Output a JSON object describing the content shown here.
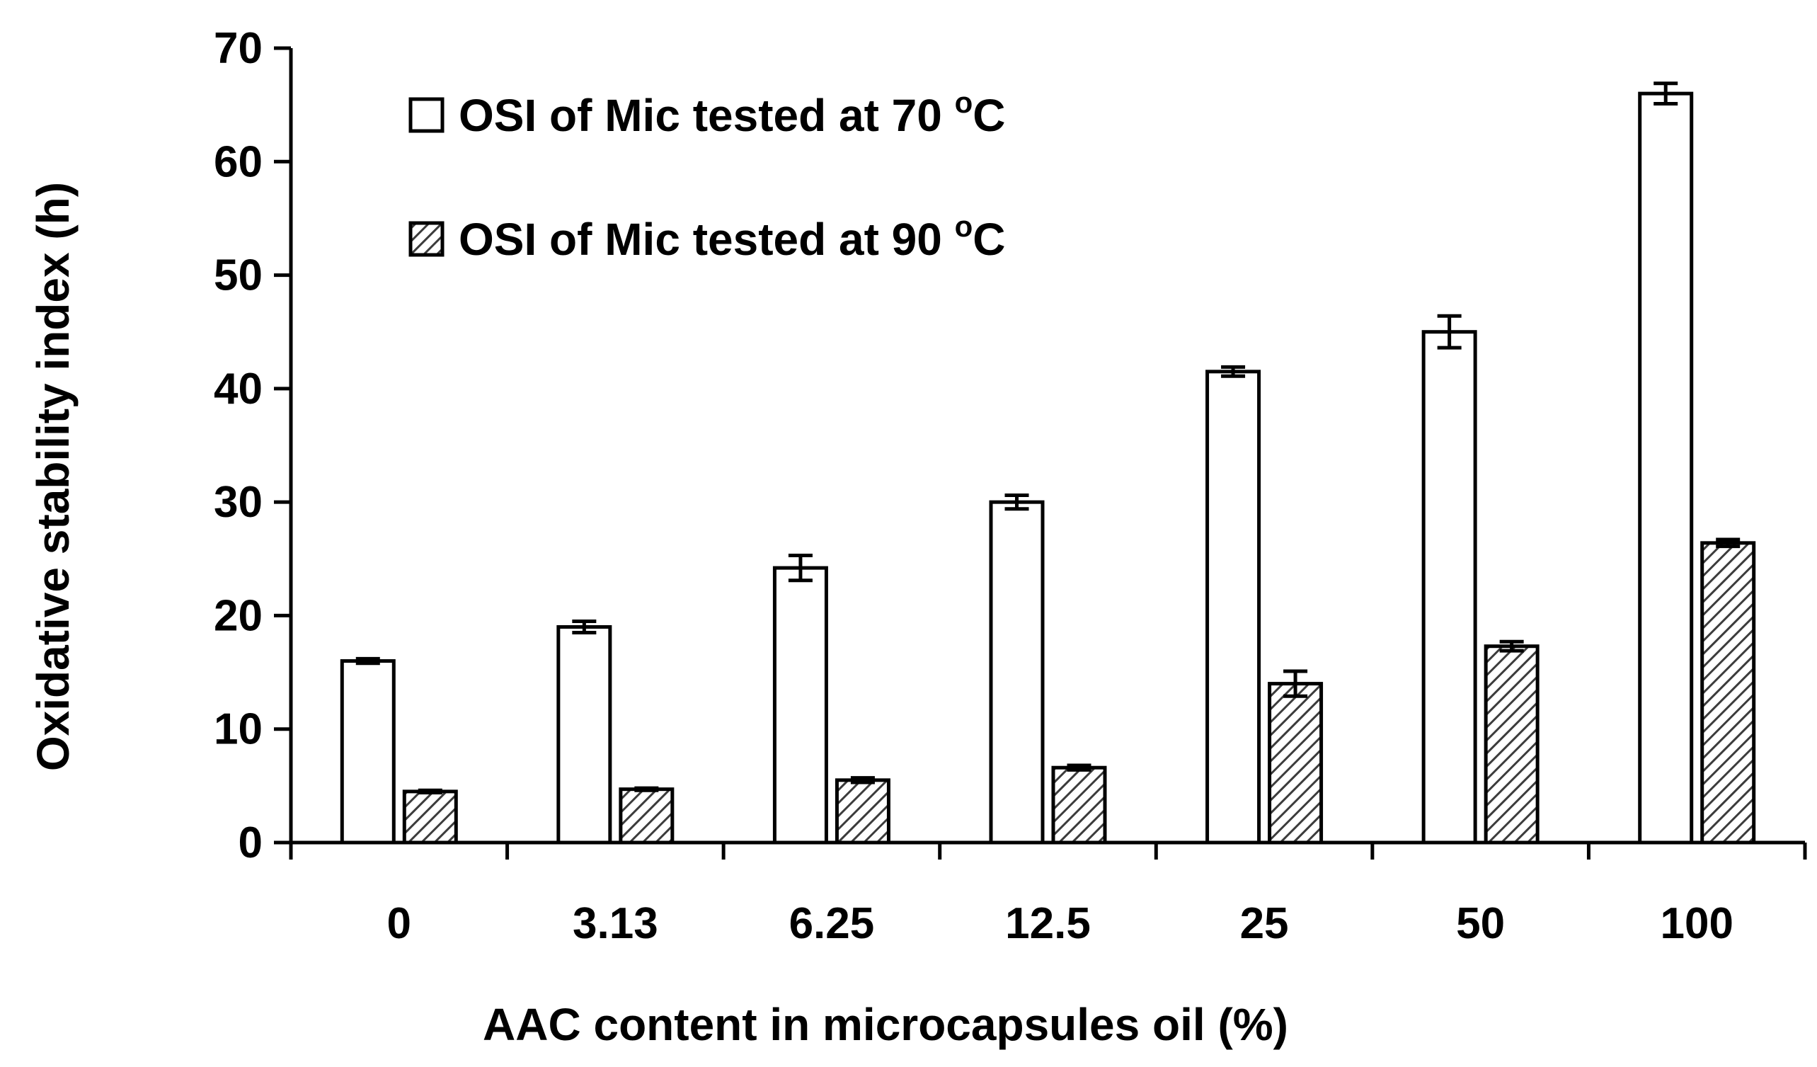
{
  "chart_data": {
    "type": "bar",
    "categories": [
      "0",
      "3.13",
      "6.25",
      "12.5",
      "25",
      "50",
      "100"
    ],
    "xlabel": "AAC content in microcapsules oil (%)",
    "ylabel": "Oxidative stability index (h)",
    "ylim": [
      0,
      70
    ],
    "yticks": [
      0,
      10,
      20,
      30,
      40,
      50,
      60,
      70
    ],
    "ytick_labels": [
      "0",
      "10",
      "20",
      "30",
      "40",
      "50",
      "60",
      "70"
    ],
    "grid": false,
    "legend_position": "top-left",
    "series": [
      {
        "name": "OSI of Mic tested at 70 ",
        "name_superscript": "o",
        "name_suffix": "C",
        "fill": "#ffffff",
        "pattern": "none",
        "values": [
          16.0,
          19.0,
          24.2,
          30.0,
          41.5,
          45.0,
          66.0
        ],
        "errors": [
          0.2,
          0.5,
          1.1,
          0.6,
          0.4,
          1.4,
          0.9
        ]
      },
      {
        "name": "OSI of Mic tested at 90 ",
        "name_superscript": "o",
        "name_suffix": "C",
        "fill": "#ffffff",
        "pattern": "diagonal-hatch",
        "values": [
          4.5,
          4.7,
          5.5,
          6.6,
          14.0,
          17.3,
          26.4
        ],
        "errors": [
          0.1,
          0.1,
          0.2,
          0.2,
          1.1,
          0.4,
          0.3
        ]
      }
    ]
  }
}
